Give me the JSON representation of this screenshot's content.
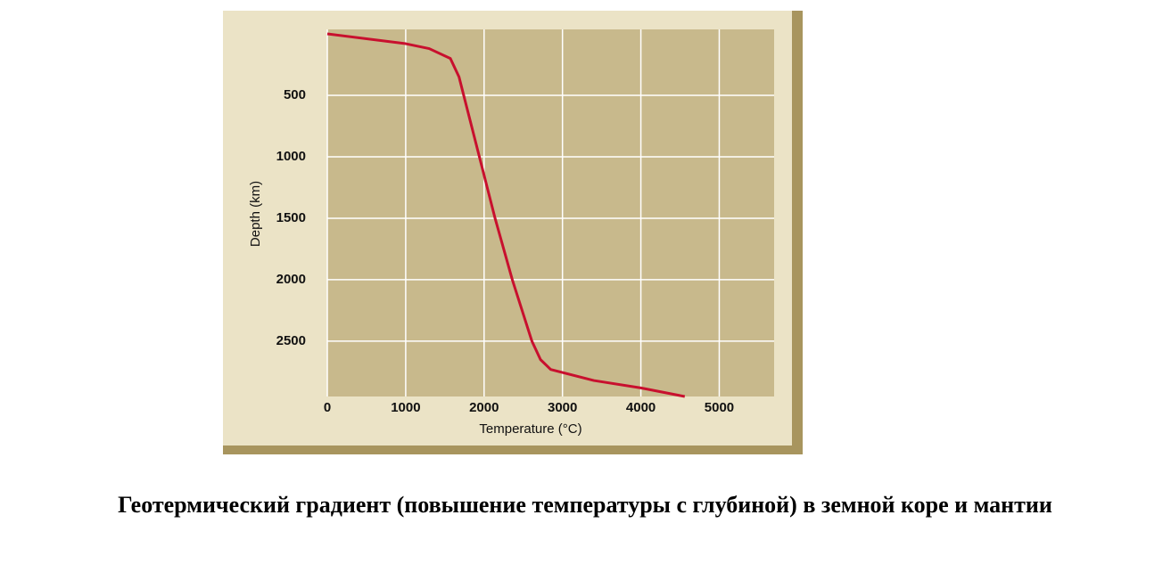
{
  "chart_data": {
    "type": "line",
    "caption": "Геотермический градиент (повышение температуры с глубиной) в земной коре и мантии",
    "xlabel": "Temperature (°C)",
    "ylabel": "Depth (km)",
    "x": [
      0,
      1000,
      1300,
      1570,
      1680,
      1740,
      1940,
      2140,
      2360,
      2610,
      2720,
      2850,
      3400,
      4000,
      4560
    ],
    "series": [
      {
        "color": "#c8102e",
        "values": [
          0,
          80,
          120,
          200,
          350,
          500,
          1000,
          1500,
          2000,
          2500,
          2650,
          2730,
          2820,
          2880,
          2950
        ]
      }
    ],
    "xlim": [
      0,
      5700
    ],
    "xticks": [
      0,
      1000,
      2000,
      3000,
      4000,
      5000
    ],
    "ylim": [
      0,
      2950
    ],
    "yticks": [
      500,
      1000,
      1500,
      2000,
      2500
    ],
    "y_inverted": true,
    "grid": true
  }
}
